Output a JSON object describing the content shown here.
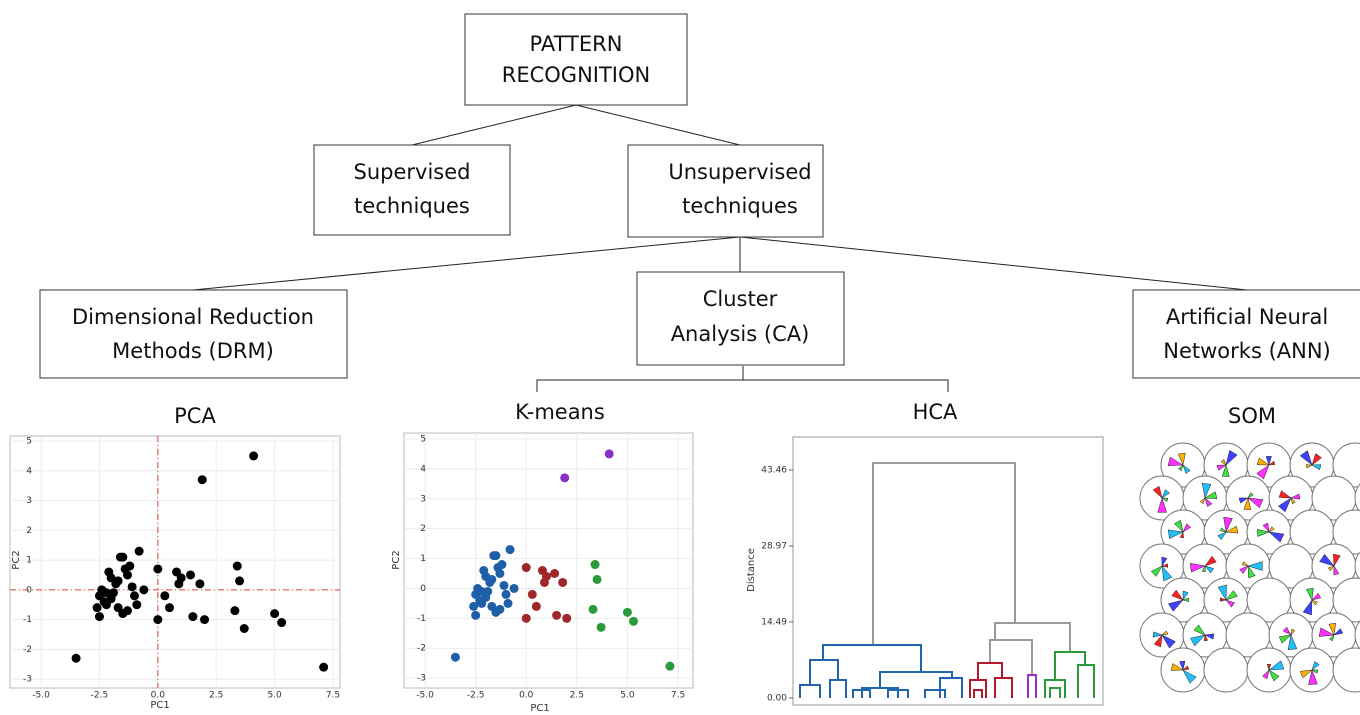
{
  "nodes": [
    {
      "lines": [
        "PATTERN",
        "RECOGNITION"
      ]
    },
    {
      "lines": [
        "Supervised",
        "techniques"
      ]
    },
    {
      "lines": [
        "Unsupervised",
        "techniques"
      ]
    },
    {
      "lines": [
        "Dimensional Reduction",
        "Methods (DRM)"
      ]
    },
    {
      "lines": [
        "Cluster",
        "Analysis (CA)"
      ]
    },
    {
      "lines": [
        "Artificial Neural",
        "Networks (ANN)"
      ]
    }
  ],
  "methods": [
    "PCA",
    "K-means",
    "HCA",
    "SOM"
  ],
  "chart_data": [
    {
      "type": "scatter",
      "xlabel": "PC1",
      "ylabel": "PC2",
      "xlim": [
        -6.33,
        7.8
      ],
      "ylim": [
        -3.3,
        5.17
      ],
      "xticks": [
        {
          "value": -5,
          "label": "-5.0"
        },
        {
          "value": -2.5,
          "label": "-2.5"
        },
        {
          "value": 0,
          "label": "0.0"
        },
        {
          "value": 2.5,
          "label": "2.5"
        },
        {
          "value": 5,
          "label": "5.0"
        },
        7.5
      ],
      "yticks": [
        -3,
        -2,
        -1,
        0,
        1,
        2,
        3,
        4,
        5
      ],
      "grid": true,
      "x_reference": 0,
      "y_reference": 0,
      "reference_color": "#e0443a",
      "series": [
        {
          "color": "#000000",
          "x": [
            -3.5,
            -2.5,
            -2.6,
            -2.5,
            -2.4,
            -2.3,
            -2.2,
            -2.1,
            -2.0,
            -2.0,
            -1.9,
            -1.8,
            -1.7,
            -1.6,
            -1.5,
            -1.4,
            -1.3,
            -1.2,
            -1.5,
            -1.3,
            -1.1,
            -1.0,
            -0.9,
            -0.8,
            -0.6,
            -1.7,
            -2.2,
            0.0,
            0.0,
            0.3,
            0.5,
            0.8,
            0.9,
            1.0,
            1.5,
            1.8,
            2.0,
            1.4,
            3.4,
            3.5,
            3.3,
            3.7,
            5.0,
            5.3,
            7.1,
            1.9,
            4.1
          ],
          "y": [
            -2.3,
            -0.9,
            -0.6,
            -0.2,
            0.0,
            -0.4,
            -0.1,
            0.6,
            0.4,
            -0.3,
            -0.1,
            0.2,
            -0.6,
            1.1,
            1.1,
            0.7,
            0.5,
            0.8,
            -0.8,
            -0.7,
            0.1,
            -0.2,
            -0.5,
            1.3,
            0.0,
            0.3,
            -0.5,
            -1.0,
            0.7,
            -0.2,
            -0.6,
            0.6,
            0.2,
            0.4,
            -0.9,
            0.2,
            -1.0,
            0.5,
            0.8,
            0.3,
            -0.7,
            -1.3,
            -0.8,
            -1.1,
            -2.6,
            3.7,
            4.5
          ]
        }
      ]
    },
    {
      "type": "scatter",
      "xlabel": "PC1",
      "ylabel": "PC2",
      "xlim": [
        -6.04,
        8.24
      ],
      "ylim": [
        -3.33,
        5.2
      ],
      "xticks": [
        {
          "value": -5,
          "label": "-5.0"
        },
        {
          "value": -2.5,
          "label": "-2.5"
        },
        {
          "value": 0,
          "label": "0.0"
        },
        {
          "value": 2.5,
          "label": "2.5"
        },
        {
          "value": 5,
          "label": "5.0"
        },
        7.5
      ],
      "yticks": [
        -3,
        -2,
        -1,
        0,
        1,
        2,
        3,
        4,
        5
      ],
      "grid": true,
      "series": [
        {
          "color": "#1f5fa8",
          "x": [
            -3.5,
            -2.5,
            -2.6,
            -2.5,
            -2.4,
            -2.3,
            -2.2,
            -2.1,
            -2.0,
            -2.0,
            -1.9,
            -1.8,
            -1.7,
            -1.6,
            -1.5,
            -1.4,
            -1.3,
            -1.2,
            -1.5,
            -1.3,
            -1.1,
            -1.0,
            -0.9,
            -0.8,
            -0.6,
            -1.7,
            -2.2
          ],
          "y": [
            -2.3,
            -0.9,
            -0.6,
            -0.2,
            0.0,
            -0.4,
            -0.1,
            0.6,
            0.4,
            -0.3,
            -0.1,
            0.2,
            -0.6,
            1.1,
            1.1,
            0.7,
            0.5,
            0.8,
            -0.8,
            -0.7,
            0.1,
            -0.2,
            -0.5,
            1.3,
            0.0,
            0.3,
            -0.5
          ]
        },
        {
          "color": "#a0262a",
          "x": [
            0.0,
            0.0,
            0.3,
            0.5,
            0.8,
            0.9,
            1.0,
            1.5,
            1.8,
            2.0,
            1.4
          ],
          "y": [
            -1.0,
            0.7,
            -0.2,
            -0.6,
            0.6,
            0.2,
            0.4,
            -0.9,
            0.2,
            -1.0,
            0.5
          ]
        },
        {
          "color": "#2a9a3a",
          "x": [
            3.4,
            3.5,
            3.3,
            3.7,
            5.0,
            5.3,
            7.1
          ],
          "y": [
            0.8,
            0.3,
            -0.7,
            -1.3,
            -0.8,
            -1.1,
            -2.6
          ]
        },
        {
          "color": "#8b2fc9",
          "x": [
            1.9,
            4.1
          ],
          "y": [
            3.7,
            4.5
          ]
        }
      ]
    },
    {
      "type": "dendrogram",
      "ylabel": "Distance",
      "ylim": [
        0,
        49.75
      ],
      "yticks": [
        {
          "value": 0,
          "label": "0.00"
        },
        14.49,
        28.97,
        43.46
      ]
    }
  ]
}
